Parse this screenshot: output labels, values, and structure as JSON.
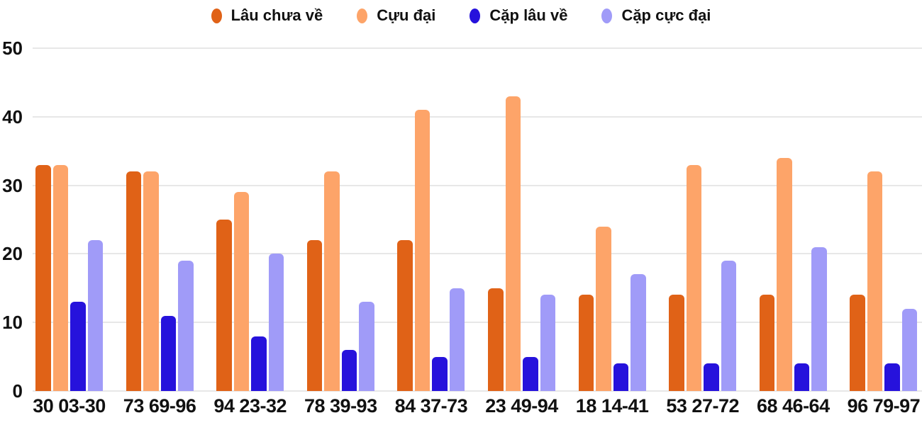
{
  "colors": {
    "background": "#FFFFFF",
    "grid": "#E7E7E7",
    "text": "#111111"
  },
  "chart_data": {
    "type": "bar",
    "title": "",
    "xlabel": "",
    "ylabel": "",
    "ylim": [
      0,
      50
    ],
    "yticks": [
      0,
      10,
      20,
      30,
      40,
      50
    ],
    "grid": true,
    "legend_position": "top",
    "categories": [
      "30 03-30",
      "73 69-96",
      "94 23-32",
      "78 39-93",
      "84 37-73",
      "23 49-94",
      "18 14-41",
      "53 27-72",
      "68 46-64",
      "96 79-97"
    ],
    "series": [
      {
        "name": "Lâu chưa về",
        "color": "#E06217",
        "values": [
          33,
          32,
          25,
          22,
          22,
          15,
          14,
          14,
          14,
          14
        ]
      },
      {
        "name": "Cựu đại",
        "color": "#FDA469",
        "values": [
          33,
          32,
          29,
          32,
          41,
          43,
          24,
          33,
          34,
          32
        ]
      },
      {
        "name": "Cặp lâu về",
        "color": "#2612DC",
        "values": [
          13,
          11,
          8,
          6,
          5,
          5,
          4,
          4,
          4,
          4
        ]
      },
      {
        "name": "Cặp cực đại",
        "color": "#A09BF8",
        "values": [
          22,
          19,
          20,
          13,
          15,
          14,
          17,
          19,
          21,
          12
        ]
      }
    ]
  }
}
